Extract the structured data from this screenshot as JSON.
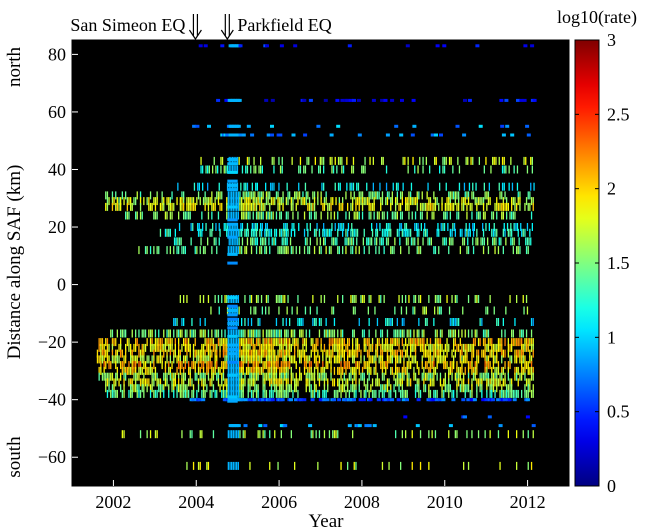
{
  "chart_data": {
    "type": "heatmap",
    "title": "",
    "xlabel": "Year",
    "ylabel": "Distance along SAF (km)",
    "xlim": [
      2001,
      2013
    ],
    "ylim": [
      -70,
      85
    ],
    "xticks": [
      2002,
      2004,
      2006,
      2008,
      2010,
      2012
    ],
    "yticks": [
      -60,
      -40,
      -20,
      0,
      20,
      40,
      60,
      80
    ],
    "y_side_labels": {
      "top": "north",
      "bottom": "south"
    },
    "annotations": [
      {
        "text": "San Simeon EQ",
        "arrow_x": 2003.98
      },
      {
        "text": "Parkfield EQ",
        "arrow_x": 2004.75
      }
    ],
    "colorbar": {
      "label": "log10(rate)",
      "range": [
        0,
        3
      ],
      "ticks": [
        0,
        0.5,
        1,
        1.5,
        2,
        2.5,
        3
      ],
      "colormap": "jet"
    },
    "background_color": "#000000",
    "grid": false,
    "streaks": [
      {
        "distance_km": 83,
        "level": 0.4,
        "density": 0.08,
        "start": 2001.7
      },
      {
        "distance_km": 64,
        "level": 0.35,
        "density": 0.12,
        "start": 2004.4
      },
      {
        "distance_km": 55,
        "level": 0.8,
        "density": 0.08,
        "start": 2003.9
      },
      {
        "distance_km": 52,
        "level": 0.8,
        "density": 0.08,
        "start": 2003.9
      },
      {
        "distance_km": 43,
        "level": 1.7,
        "density": 0.3,
        "start": 2003.9
      },
      {
        "distance_km": 40,
        "level": 1.4,
        "density": 0.3,
        "start": 2003.9
      },
      {
        "distance_km": 34,
        "level": 1.1,
        "density": 0.25,
        "start": 2003.5
      },
      {
        "distance_km": 31,
        "level": 1.5,
        "density": 0.4,
        "start": 2001.8
      },
      {
        "distance_km": 29,
        "level": 1.7,
        "density": 0.55,
        "start": 2001.8
      },
      {
        "distance_km": 27,
        "level": 1.8,
        "density": 0.55,
        "start": 2001.8
      },
      {
        "distance_km": 24,
        "level": 1.5,
        "density": 0.45,
        "start": 2002.2
      },
      {
        "distance_km": 20,
        "level": 1.1,
        "density": 0.35,
        "start": 2003.5
      },
      {
        "distance_km": 18,
        "level": 1.2,
        "density": 0.4,
        "start": 2003.0
      },
      {
        "distance_km": 15,
        "level": 1.4,
        "density": 0.45,
        "start": 2003.3
      },
      {
        "distance_km": 12,
        "level": 1.5,
        "density": 0.4,
        "start": 2002.6
      },
      {
        "distance_km": -5,
        "level": 1.6,
        "density": 0.35,
        "start": 2003.6
      },
      {
        "distance_km": -9,
        "level": 1.5,
        "density": 0.2,
        "start": 2004.3
      },
      {
        "distance_km": -13,
        "level": 1.1,
        "density": 0.25,
        "start": 2003.4
      },
      {
        "distance_km": -17,
        "level": 1.5,
        "density": 0.5,
        "start": 2001.8
      },
      {
        "distance_km": -20,
        "level": 2.0,
        "density": 0.6,
        "start": 2001.6
      },
      {
        "distance_km": -22,
        "level": 1.9,
        "density": 0.6,
        "start": 2001.6
      },
      {
        "distance_km": -24,
        "level": 2.0,
        "density": 0.6,
        "start": 2001.6
      },
      {
        "distance_km": -26,
        "level": 1.8,
        "density": 0.6,
        "start": 2001.6
      },
      {
        "distance_km": -28,
        "level": 2.1,
        "density": 0.55,
        "start": 2001.6
      },
      {
        "distance_km": -30,
        "level": 1.9,
        "density": 0.55,
        "start": 2001.6
      },
      {
        "distance_km": -32,
        "level": 1.6,
        "density": 0.55,
        "start": 2001.6
      },
      {
        "distance_km": -34,
        "level": 1.8,
        "density": 0.55,
        "start": 2001.8
      },
      {
        "distance_km": -36,
        "level": 1.6,
        "density": 0.5,
        "start": 2001.8
      },
      {
        "distance_km": -38,
        "level": 1.4,
        "density": 0.5,
        "start": 2001.8
      },
      {
        "distance_km": -40,
        "level": 0.6,
        "density": 0.35,
        "start": 2003.8
      },
      {
        "distance_km": -46,
        "level": 0.6,
        "density": 0.05,
        "start": 2009.0
      },
      {
        "distance_km": -49,
        "level": 0.8,
        "density": 0.08,
        "start": 2004.5
      },
      {
        "distance_km": -52,
        "level": 1.6,
        "density": 0.2,
        "start": 2002.0
      },
      {
        "distance_km": -63,
        "level": 1.7,
        "density": 0.12,
        "start": 2002.8
      }
    ],
    "aftershock_band": {
      "x_start": 2004.75,
      "x_end": 2005.0,
      "level": 0.9
    }
  }
}
